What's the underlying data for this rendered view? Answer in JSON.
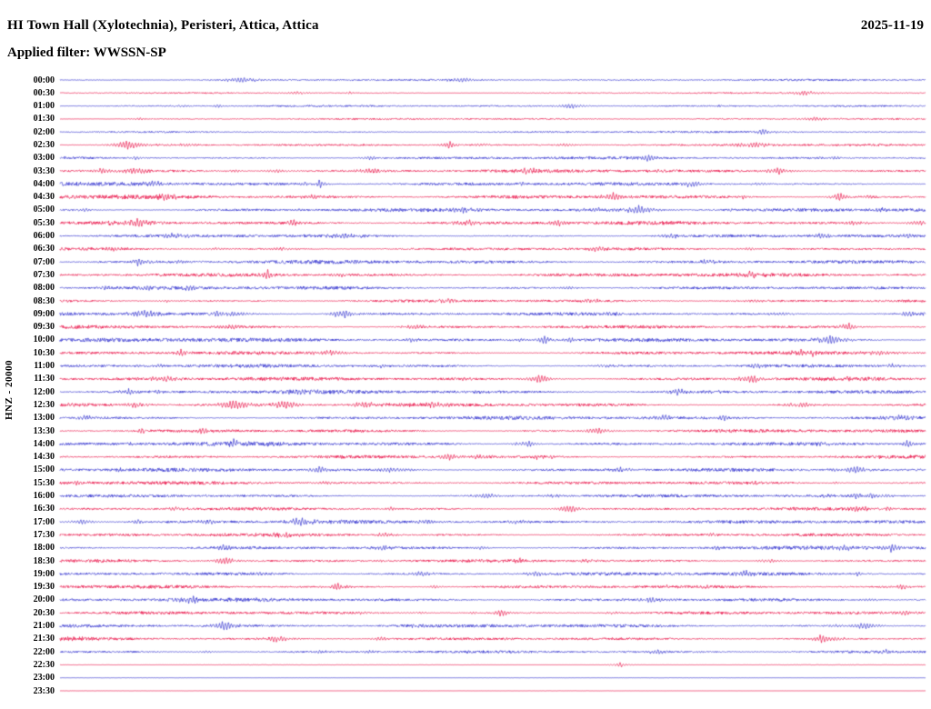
{
  "header": {
    "title": "HI Town Hall (Xylotechnia), Peristeri, Attica, Attica",
    "date": "2025-11-19",
    "filter_line": "Applied filter: WWSSN-SP"
  },
  "left_axis": {
    "label": "HNZ - 20000"
  },
  "chart_data": {
    "type": "line",
    "subtype": "helicorder-seismogram",
    "title": "HI Town Hall (Xylotechnia), Peristeri, Attica, Attica",
    "date": "2025-11-19",
    "filter": "WWSSN-SP",
    "channel": "HNZ",
    "scale": 20000,
    "minutes_per_row": 30,
    "rows": 48,
    "background": "#ffffff",
    "trace_colors": [
      "#2626cc",
      "#e8003c"
    ],
    "color_rule": "rows alternate: even rows blue, odd rows red",
    "row_labels": [
      "00:00",
      "00:30",
      "01:00",
      "01:30",
      "02:00",
      "02:30",
      "03:00",
      "03:30",
      "04:00",
      "04:30",
      "05:00",
      "05:30",
      "06:00",
      "06:30",
      "07:00",
      "07:30",
      "08:00",
      "08:30",
      "09:00",
      "09:30",
      "10:00",
      "10:30",
      "11:00",
      "11:30",
      "12:00",
      "12:30",
      "13:00",
      "13:30",
      "14:00",
      "14:30",
      "15:00",
      "15:30",
      "16:00",
      "16:30",
      "17:00",
      "17:30",
      "18:00",
      "18:30",
      "19:00",
      "19:30",
      "20:00",
      "20:30",
      "21:00",
      "21:30",
      "22:00",
      "22:30",
      "23:00",
      "23:30"
    ],
    "row_activity": [
      0.5,
      0.4,
      0.5,
      0.45,
      0.5,
      0.6,
      0.8,
      0.85,
      1.0,
      1.1,
      1.0,
      0.95,
      0.9,
      0.9,
      1.0,
      1.0,
      0.95,
      0.9,
      1.0,
      1.0,
      1.1,
      1.0,
      0.95,
      1.05,
      1.0,
      1.1,
      1.0,
      0.95,
      1.1,
      1.0,
      1.05,
      0.95,
      0.9,
      0.9,
      0.95,
      0.9,
      0.95,
      0.9,
      0.9,
      0.95,
      0.95,
      0.9,
      0.95,
      0.9,
      0.85,
      0.12,
      0.07,
      0.06
    ],
    "noise_seed": 20251119,
    "notable_events": [
      {
        "row": 0,
        "frac": 0.21,
        "amp": 4
      },
      {
        "row": 1,
        "frac": 0.86,
        "amp": 3
      },
      {
        "row": 2,
        "frac": 0.59,
        "amp": 3.5
      },
      {
        "row": 5,
        "frac": 0.08,
        "amp": 6
      },
      {
        "row": 5,
        "frac": 0.45,
        "amp": 5
      },
      {
        "row": 5,
        "frac": 0.8,
        "amp": 4
      },
      {
        "row": 6,
        "frac": 0.68,
        "amp": 5
      },
      {
        "row": 7,
        "frac": 0.09,
        "amp": 4
      },
      {
        "row": 7,
        "frac": 0.54,
        "amp": 4
      },
      {
        "row": 7,
        "frac": 0.83,
        "amp": 4
      },
      {
        "row": 8,
        "frac": 0.3,
        "amp": 5
      },
      {
        "row": 8,
        "frac": 0.73,
        "amp": 5
      },
      {
        "row": 9,
        "frac": 0.12,
        "amp": 4
      },
      {
        "row": 9,
        "frac": 0.64,
        "amp": 5
      },
      {
        "row": 9,
        "frac": 0.9,
        "amp": 6
      },
      {
        "row": 10,
        "frac": 0.67,
        "amp": 6
      },
      {
        "row": 11,
        "frac": 0.09,
        "amp": 4
      },
      {
        "row": 11,
        "frac": 0.27,
        "amp": 4
      },
      {
        "row": 12,
        "frac": 0.33,
        "amp": 4
      },
      {
        "row": 12,
        "frac": 0.88,
        "amp": 4
      },
      {
        "row": 13,
        "frac": 0.62,
        "amp": 4
      },
      {
        "row": 14,
        "frac": 0.09,
        "amp": 5
      },
      {
        "row": 15,
        "frac": 0.24,
        "amp": 5
      },
      {
        "row": 15,
        "frac": 0.8,
        "amp": 4
      },
      {
        "row": 16,
        "frac": 0.15,
        "amp": 4
      },
      {
        "row": 18,
        "frac": 0.1,
        "amp": 5
      },
      {
        "row": 18,
        "frac": 0.33,
        "amp": 5
      },
      {
        "row": 19,
        "frac": 0.91,
        "amp": 5
      },
      {
        "row": 20,
        "frac": 0.56,
        "amp": 5
      },
      {
        "row": 20,
        "frac": 0.89,
        "amp": 6
      },
      {
        "row": 21,
        "frac": 0.87,
        "amp": 5
      },
      {
        "row": 23,
        "frac": 0.12,
        "amp": 4
      },
      {
        "row": 23,
        "frac": 0.8,
        "amp": 5
      },
      {
        "row": 24,
        "frac": 0.08,
        "amp": 5
      },
      {
        "row": 25,
        "frac": 0.2,
        "amp": 6
      },
      {
        "row": 25,
        "frac": 0.26,
        "amp": 5
      },
      {
        "row": 26,
        "frac": 0.03,
        "amp": 4
      },
      {
        "row": 27,
        "frac": 0.62,
        "amp": 4
      },
      {
        "row": 28,
        "frac": 0.2,
        "amp": 5
      },
      {
        "row": 28,
        "frac": 0.54,
        "amp": 5
      },
      {
        "row": 28,
        "frac": 0.98,
        "amp": 5
      },
      {
        "row": 29,
        "frac": 0.45,
        "amp": 5
      },
      {
        "row": 30,
        "frac": 0.3,
        "amp": 5
      },
      {
        "row": 30,
        "frac": 0.92,
        "amp": 6
      },
      {
        "row": 32,
        "frac": 0.92,
        "amp": 5
      },
      {
        "row": 33,
        "frac": 0.59,
        "amp": 4
      },
      {
        "row": 34,
        "frac": 0.28,
        "amp": 5
      },
      {
        "row": 36,
        "frac": 0.19,
        "amp": 4
      },
      {
        "row": 36,
        "frac": 0.96,
        "amp": 5
      },
      {
        "row": 37,
        "frac": 0.19,
        "amp": 5
      },
      {
        "row": 38,
        "frac": 0.79,
        "amp": 4
      },
      {
        "row": 39,
        "frac": 0.32,
        "amp": 5
      },
      {
        "row": 40,
        "frac": 0.15,
        "amp": 5
      },
      {
        "row": 41,
        "frac": 0.51,
        "amp": 4
      },
      {
        "row": 42,
        "frac": 0.19,
        "amp": 6
      },
      {
        "row": 42,
        "frac": 0.93,
        "amp": 5
      },
      {
        "row": 43,
        "frac": 0.25,
        "amp": 5
      },
      {
        "row": 43,
        "frac": 0.88,
        "amp": 5
      },
      {
        "row": 44,
        "frac": 0.69,
        "amp": 4
      }
    ]
  }
}
